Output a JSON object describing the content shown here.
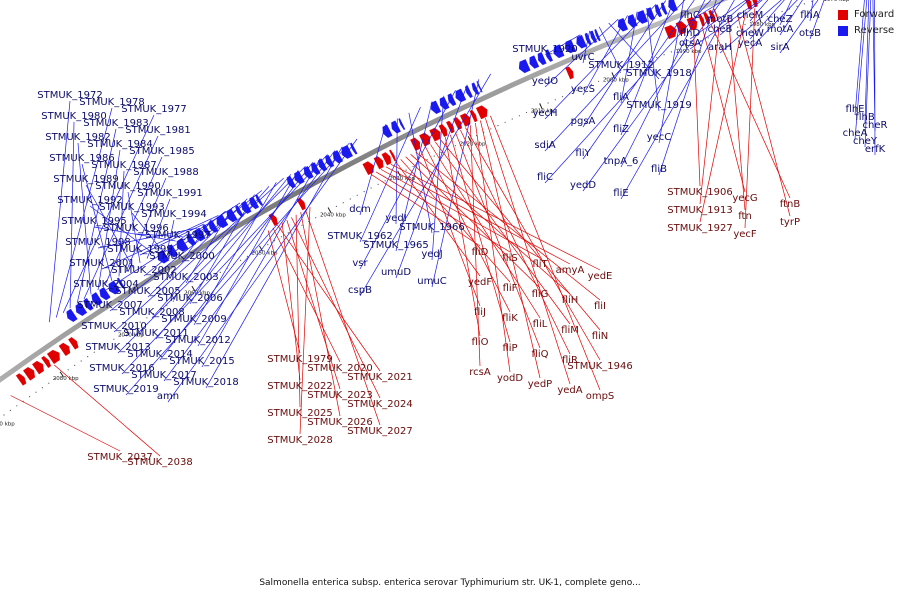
{
  "colors": {
    "forward": "#e00000",
    "reverse": "#1a1aee",
    "backbone": "#888888"
  },
  "legend": {
    "forward": "Forward",
    "reverse": "Reverse"
  },
  "caption": "Salmonella enterica subsp. enterica serovar Typhimurium str. UK-1, complete geno...",
  "scale": {
    "ticks": [
      {
        "label": "1970 kbp",
        "kbp": 1970
      },
      {
        "label": "1980 kbp",
        "kbp": 1980
      },
      {
        "label": "1990 kbp",
        "kbp": 1990
      },
      {
        "label": "2000 kbp",
        "kbp": 2000
      },
      {
        "label": "2010 kbp",
        "kbp": 2010
      },
      {
        "label": "2020 kbp",
        "kbp": 2020
      },
      {
        "label": "2030 kbp",
        "kbp": 2030
      },
      {
        "label": "2040 kbp",
        "kbp": 2040
      },
      {
        "label": "2050 kbp",
        "kbp": 2050
      },
      {
        "label": "2060 kbp",
        "kbp": 2060
      },
      {
        "label": "2070 kbp",
        "kbp": 2070
      },
      {
        "label": "2080 kbp",
        "kbp": 2080
      },
      {
        "label": "2090 kbp",
        "kbp": 2090
      }
    ]
  },
  "reverse_genes": [
    "flhC",
    "motB",
    "cheM",
    "cheZ",
    "flhA",
    "flhD",
    "cheB",
    "cheW",
    "motA",
    "otsB",
    "otsA",
    "araH",
    "yecA",
    "sirA",
    "STMUK_1920",
    "uvrC",
    "STMUK_1912",
    "STMUK_1918",
    "yedO",
    "yecS",
    "fliA",
    "STMUK_1919",
    "yecH",
    "pgsA",
    "fliZ",
    "yecC",
    "sdiA",
    "fliY",
    "tnpA_6",
    "fliB",
    "fliC",
    "yedD",
    "fliE",
    "dcm",
    "yedI",
    "STMUK_1966",
    "STMUK_1962",
    "STMUK_1965",
    "yedJ",
    "vsr",
    "umuD",
    "umuC",
    "cspB",
    "STMUK_1972",
    "STMUK_1978",
    "STMUK_1977",
    "STMUK_1980",
    "STMUK_1983",
    "STMUK_1981",
    "STMUK_1982",
    "STMUK_1984",
    "STMUK_1985",
    "STMUK_1986",
    "STMUK_1987",
    "STMUK_1988",
    "STMUK_1989",
    "STMUK_1990",
    "STMUK_1991",
    "STMUK_1992",
    "STMUK_1993",
    "STMUK_1994",
    "STMUK_1995",
    "STMUK_1996",
    "STMUK_1997",
    "STMUK_1998",
    "STMUK_1999",
    "STMUK_2000",
    "STMUK_2001",
    "STMUK_2002",
    "STMUK_2003",
    "STMUK_2004",
    "STMUK_2005",
    "STMUK_2006",
    "STMUK_2007",
    "STMUK_2008",
    "STMUK_2009",
    "STMUK_2010",
    "STMUK_2011",
    "STMUK_2012",
    "STMUK_2013",
    "STMUK_2014",
    "STMUK_2015",
    "STMUK_2016",
    "STMUK_2017",
    "STMUK_2018",
    "STMUK_2019",
    "amn",
    "flhE",
    "flhB",
    "cheR",
    "cheA",
    "cheY",
    "erfK"
  ],
  "forward_genes": [
    "STMUK_1906",
    "yecG",
    "ftnB",
    "STMUK_1913",
    "ftn",
    "tyrP",
    "STMUK_1927",
    "yecF",
    "fliD",
    "fliS",
    "fliT",
    "amyA",
    "yedE",
    "yedF",
    "fliF",
    "fliG",
    "fliH",
    "fliI",
    "fliJ",
    "fliK",
    "fliL",
    "fliM",
    "fliN",
    "fliO",
    "fliP",
    "fliQ",
    "fliR",
    "STMUK_1946",
    "rcsA",
    "yodD",
    "yedP",
    "yedA",
    "ompS",
    "STMUK_1979",
    "STMUK_2020",
    "STMUK_2021",
    "STMUK_2022",
    "STMUK_2023",
    "STMUK_2024",
    "STMUK_2025",
    "STMUK_2026",
    "STMUK_2027",
    "STMUK_2028",
    "STMUK_2037",
    "STMUK_2038"
  ]
}
